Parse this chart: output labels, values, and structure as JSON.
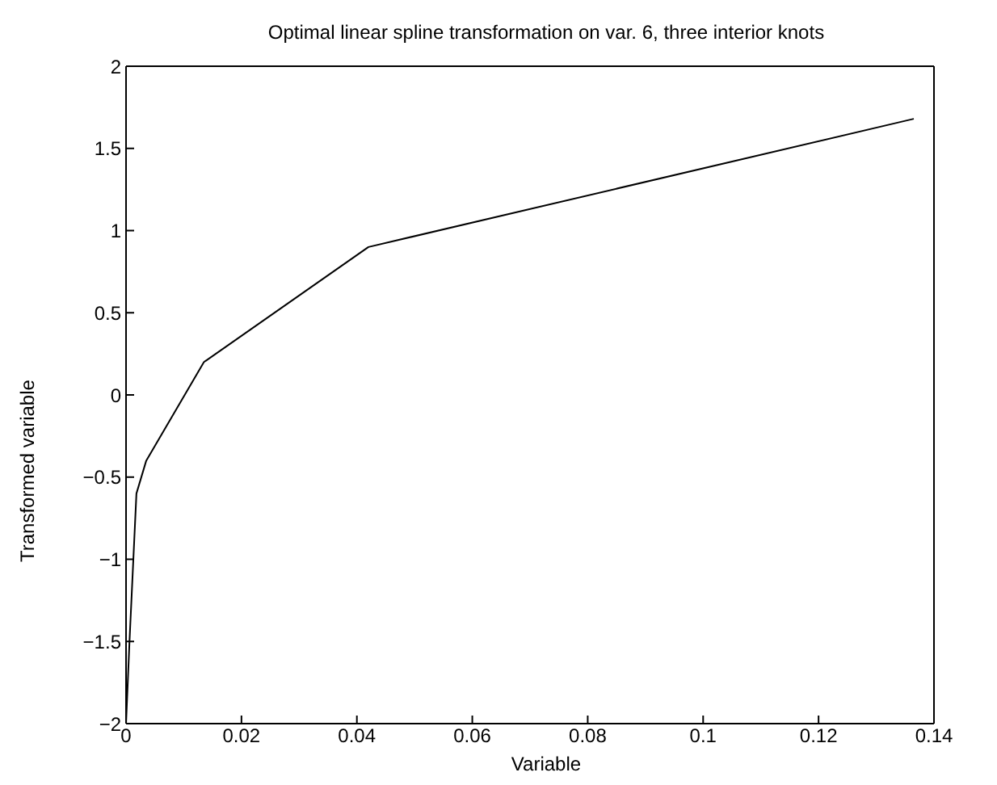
{
  "chart_data": {
    "type": "line",
    "title": "Optimal linear spline transformation on var. 6, three interior knots",
    "xlabel": "Variable",
    "ylabel": "Transformed variable",
    "x": [
      0,
      0.0006,
      0.0018,
      0.0035,
      0.0135,
      0.042,
      0.1365
    ],
    "series": [
      {
        "color": "#000000",
        "values": [
          -2,
          -1.5,
          -0.6,
          -0.4,
          0.2,
          0.9,
          1.68
        ]
      }
    ],
    "xlim": [
      0,
      0.14
    ],
    "xticks": [
      0,
      0.02,
      0.04,
      0.06,
      0.08,
      0.1,
      0.12,
      0.14
    ],
    "ylim": [
      -2,
      2
    ],
    "yticks": [
      -2,
      -1.5,
      -1,
      -0.5,
      0,
      0.5,
      1,
      1.5,
      2
    ],
    "grid": false,
    "legend": false,
    "marker": "none",
    "line_style": "solid"
  }
}
